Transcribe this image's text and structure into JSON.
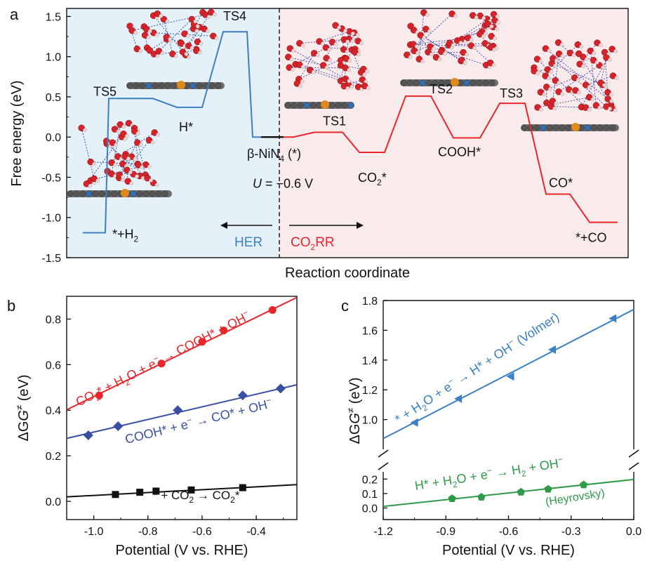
{
  "chart_data": [
    {
      "panel": "a",
      "type": "line",
      "ylabel": "Free energy (eV)",
      "xlabel": "Reaction coordinate",
      "ylim": [
        -1.5,
        1.6
      ],
      "yticks": [
        -1.5,
        -1.0,
        -0.5,
        0.0,
        0.5,
        1.0,
        1.5
      ],
      "yticklabels": [
        "-1.5",
        "-1.0",
        "-0.5",
        "0.0",
        "0.5",
        "1.0",
        "1.5"
      ],
      "center_state": {
        "label_prefix": "β-NiN",
        "label_sub": "4",
        "label_suffix": " (*)",
        "value": 0.0
      },
      "potential_note": {
        "var": "U",
        "text": " = −0.6 V"
      },
      "hor_label": "HER",
      "co2rr_label": {
        "prefix": "CO",
        "sub": "2",
        "suffix": "RR"
      },
      "colors": {
        "her": "#3c7fc2",
        "co2rr": "#e8262c",
        "her_bg": "#e4f1f8",
        "co2rr_bg": "#f9ebeb",
        "center": "#111111"
      },
      "her_states": [
        {
          "id": "h2",
          "label_prefix": "*+H",
          "label_sub": "2",
          "value": -1.19
        },
        {
          "id": "ts5",
          "label": "TS5",
          "value": 0.48
        },
        {
          "id": "hstar",
          "label": "H*",
          "value": 0.37
        },
        {
          "id": "ts4",
          "label": "TS4",
          "value": 1.31
        },
        {
          "id": "start",
          "label": "",
          "value": 0.0
        }
      ],
      "co2rr_states": [
        {
          "id": "start",
          "label": "",
          "value": 0.0
        },
        {
          "id": "ts1",
          "label": "TS1",
          "value": 0.06
        },
        {
          "id": "co2star",
          "label_prefix": "CO",
          "label_sub": "2",
          "label_suffix": "*",
          "value": -0.19
        },
        {
          "id": "ts2",
          "label": "TS2",
          "value": 0.51
        },
        {
          "id": "coohstar",
          "label": "COOH*",
          "value": -0.01
        },
        {
          "id": "ts3",
          "label": "TS3",
          "value": 0.42
        },
        {
          "id": "costar",
          "label": "CO*",
          "value": -0.71
        },
        {
          "id": "co",
          "label": "*+CO",
          "value": -1.06
        }
      ]
    },
    {
      "panel": "b",
      "type": "scatter",
      "xlabel_prefix": "Potential (V vs. RHE)",
      "ylabel_prefix": "ΔG",
      "ylabel_sup": "≠",
      "ylabel_suffix": " (eV)",
      "xlim": [
        -1.1,
        -0.25
      ],
      "ylim": [
        -0.08,
        0.9
      ],
      "xticks": [
        -1.0,
        -0.8,
        -0.6,
        -0.4
      ],
      "xticklabels": [
        "-1.0",
        "-0.8",
        "-0.6",
        "-0.4"
      ],
      "yticks": [
        0.0,
        0.2,
        0.4,
        0.6,
        0.8
      ],
      "yticklabels": [
        "0.0",
        "0.2",
        "0.4",
        "0.6",
        "0.8"
      ],
      "series": [
        {
          "id": "cooh",
          "color": "#e8262c",
          "marker": "circle",
          "x": [
            -0.98,
            -0.75,
            -0.6,
            -0.52,
            -0.34
          ],
          "y": [
            0.465,
            0.605,
            0.7,
            0.75,
            0.84
          ],
          "fit": {
            "slope": 0.58,
            "intercept": 1.04
          }
        },
        {
          "id": "co",
          "color": "#3a4fa3",
          "marker": "diamond",
          "x": [
            -1.02,
            -0.91,
            -0.69,
            -0.45,
            -0.31
          ],
          "y": [
            0.29,
            0.33,
            0.4,
            0.465,
            0.495
          ],
          "fit": {
            "slope": 0.277,
            "intercept": 0.581
          }
        },
        {
          "id": "co2",
          "color": "#111111",
          "marker": "square",
          "x": [
            -0.92,
            -0.83,
            -0.77,
            -0.64,
            -0.45
          ],
          "y": [
            0.03,
            0.04,
            0.045,
            0.05,
            0.06
          ],
          "fit": {
            "slope": 0.063,
            "intercept": 0.089
          }
        }
      ]
    },
    {
      "panel": "c",
      "type": "scatter",
      "xlabel_prefix": "Potential (V vs. RHE)",
      "ylabel_prefix": "ΔG",
      "ylabel_sup": "≠",
      "ylabel_suffix": " (eV)",
      "xlim": [
        -1.2,
        0.0
      ],
      "xticks": [
        -1.2,
        -0.9,
        -0.6,
        -0.3,
        0.0
      ],
      "xticklabels": [
        "-1.2",
        "-0.9",
        "-0.6",
        "-0.3",
        "0.0"
      ],
      "axis_break": true,
      "upper_ylim": [
        0.8,
        1.8
      ],
      "upper_yticks": [
        1.0,
        1.2,
        1.4,
        1.6,
        1.8
      ],
      "upper_yticklabels": [
        "1.0",
        "1.2",
        "1.4",
        "1.6",
        "1.8"
      ],
      "lower_ylim": [
        -0.08,
        0.25
      ],
      "lower_yticks": [
        0.0,
        0.1,
        0.2
      ],
      "lower_yticklabels": [
        "0.0",
        "0.1",
        "0.2"
      ],
      "series": [
        {
          "id": "volmer",
          "color": "#3c7fc2",
          "marker": "triangle-left",
          "x": [
            -1.05,
            -0.84,
            -0.59,
            -0.39,
            -0.1
          ],
          "y": [
            0.98,
            1.14,
            1.29,
            1.47,
            1.68
          ],
          "fit": {
            "slope": 0.723,
            "intercept": 1.74
          }
        },
        {
          "id": "heyrovsky",
          "color": "#2e9a4a",
          "marker": "pentagon",
          "x": [
            -0.87,
            -0.73,
            -0.54,
            -0.41,
            -0.24
          ],
          "y": [
            0.065,
            0.075,
            0.11,
            0.13,
            0.16
          ],
          "fit": {
            "slope": 0.155,
            "intercept": 0.197
          }
        }
      ]
    }
  ],
  "panel_labels": {
    "a": "a",
    "b": "b",
    "c": "c"
  },
  "annotations": {
    "b_red": {
      "parts": [
        "CO",
        "2",
        "* + H",
        "2",
        "O + e",
        "−",
        " → COOH* + OH",
        "−"
      ]
    },
    "b_blue": {
      "parts": [
        "COOH* + e",
        "−",
        " → CO* + OH",
        "−"
      ]
    },
    "b_black": {
      "parts": [
        "* + CO",
        "2",
        " → CO",
        "2",
        "*"
      ]
    },
    "c_blue": {
      "parts": [
        "* + H",
        "2",
        "O + e",
        "−",
        " → H* + OH",
        "−",
        " (Volmer)"
      ]
    },
    "c_green": {
      "parts": [
        "H* + H",
        "2",
        "O + e",
        "−",
        " → H",
        "2",
        " + OH",
        "−"
      ]
    },
    "c_green2": {
      "text": "(Heyrovsky)"
    }
  }
}
